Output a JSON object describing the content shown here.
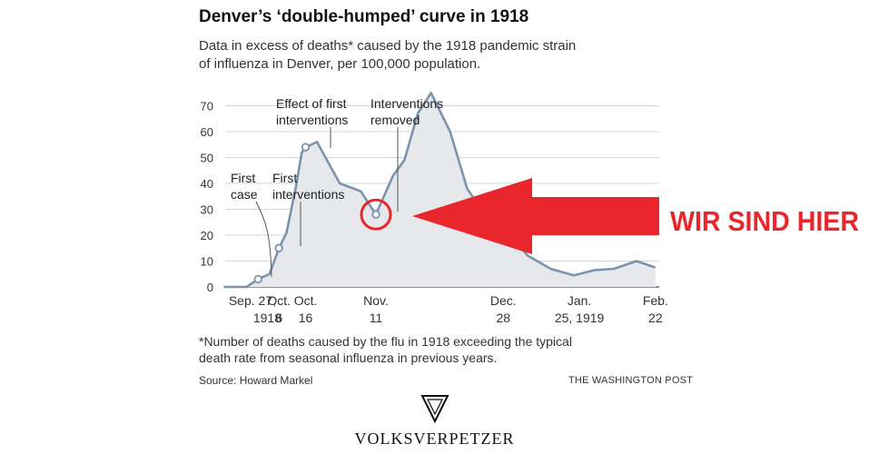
{
  "header": {
    "title": "Denver’s ‘double-humped’ curve in 1918",
    "subtitle": "Data in excess of deaths* caused by the 1918 pandemic strain of influenza in Denver, per 100,000 population."
  },
  "footer": {
    "footnote": "*Number of deaths caused by the flu in 1918 exceeding the typical death rate from seasonal influenza in previous years.",
    "source": "Source: Howard Markel",
    "credit": "THE WASHINGTON POST"
  },
  "overlay": {
    "text": "WIR SIND HIER",
    "color": "#e8262b"
  },
  "logo": {
    "text": "VOLKSVERPETZER",
    "icon": "inverted-triangle-icon"
  },
  "chart_data": {
    "type": "area",
    "title": "Denver’s ‘double-humped’ curve in 1918",
    "xlabel": "",
    "ylabel": "",
    "ylim": [
      0,
      75
    ],
    "yticks": [
      0,
      10,
      20,
      30,
      40,
      50,
      60,
      70
    ],
    "grid": true,
    "fill_color": "#e6e8eb",
    "line_color": "#7b93ad",
    "x_tick_labels": [
      {
        "line1": "Sep. 27,",
        "line2": "1918",
        "x": 0
      },
      {
        "line1": "Oct.",
        "line2": "6",
        "x": 1.3
      },
      {
        "line1": "Oct.",
        "line2": "16",
        "x": 2.7
      },
      {
        "line1": "Nov.",
        "line2": "11",
        "x": 6.4
      },
      {
        "line1": "Dec.",
        "line2": "28",
        "x": 13.1
      },
      {
        "line1": "Jan.",
        "line2": "25, 1919",
        "x": 17.1
      },
      {
        "line1": "Feb.",
        "line2": "22",
        "x": 21.1
      }
    ],
    "series": [
      {
        "values": [
          {
            "x": -1.6,
            "y": 0
          },
          {
            "x": -0.4,
            "y": 0
          },
          {
            "x": 0.2,
            "y": 3
          },
          {
            "x": 0.8,
            "y": 5
          },
          {
            "x": 1.3,
            "y": 15
          },
          {
            "x": 1.7,
            "y": 21
          },
          {
            "x": 2.2,
            "y": 39
          },
          {
            "x": 2.5,
            "y": 52
          },
          {
            "x": 2.7,
            "y": 54
          },
          {
            "x": 3.3,
            "y": 56
          },
          {
            "x": 4.5,
            "y": 40
          },
          {
            "x": 5.6,
            "y": 37
          },
          {
            "x": 6.4,
            "y": 28
          },
          {
            "x": 7.3,
            "y": 43
          },
          {
            "x": 7.9,
            "y": 49
          },
          {
            "x": 8.6,
            "y": 67
          },
          {
            "x": 9.3,
            "y": 75
          },
          {
            "x": 10.3,
            "y": 60
          },
          {
            "x": 11.2,
            "y": 38
          },
          {
            "x": 12.2,
            "y": 27
          },
          {
            "x": 13.1,
            "y": 23
          },
          {
            "x": 14.4,
            "y": 12
          },
          {
            "x": 15.6,
            "y": 7
          },
          {
            "x": 16.8,
            "y": 4.5
          },
          {
            "x": 17.9,
            "y": 6.5
          },
          {
            "x": 18.9,
            "y": 7
          },
          {
            "x": 20.1,
            "y": 10
          },
          {
            "x": 21.1,
            "y": 7.5
          }
        ]
      }
    ],
    "markers": [
      {
        "x": 0.2,
        "y": 3,
        "label_lines": [
          "First",
          "case"
        ]
      },
      {
        "x": 1.3,
        "y": 15,
        "label_lines": [
          "First",
          "interventions"
        ]
      },
      {
        "x": 2.7,
        "y": 54,
        "label_lines": [
          "Effect of first",
          "interventions"
        ]
      },
      {
        "x": 6.4,
        "y": 28,
        "label_lines": [
          "Interventions",
          "removed"
        ]
      }
    ]
  }
}
